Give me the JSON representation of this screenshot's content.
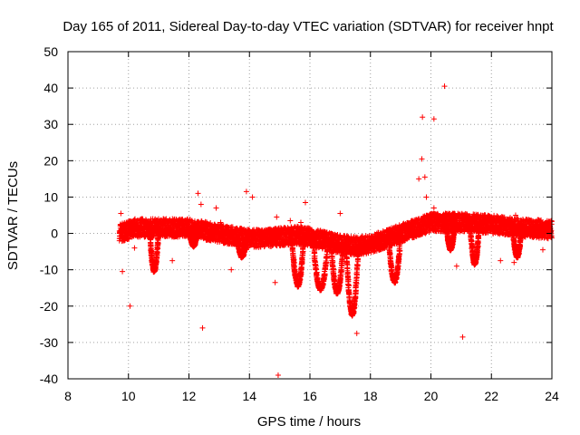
{
  "chart_data": {
    "type": "scatter",
    "title": "Day 165 of 2011, Sidereal Day-to-day VTEC variation (SDTVAR) for receiver hnpt",
    "xlabel": "GPS time / hours",
    "ylabel": "SDTVAR / TECUs",
    "xlim": [
      8,
      24
    ],
    "ylim": [
      -40,
      50
    ],
    "xticks": [
      8,
      10,
      12,
      14,
      16,
      18,
      20,
      22,
      24
    ],
    "yticks": [
      -40,
      -30,
      -20,
      -10,
      0,
      10,
      20,
      30,
      40,
      50
    ],
    "grid": true,
    "marker": "+",
    "colors": {
      "series": "#ff0000",
      "grid": "#a0a0a0",
      "axis": "#000000"
    },
    "series": [
      {
        "name": "SDTVAR",
        "dense_band": [
          [
            9.7,
            0
          ],
          [
            10.2,
            1.5
          ],
          [
            11,
            1.5
          ],
          [
            12,
            1.5
          ],
          [
            13,
            0
          ],
          [
            14,
            -1.5
          ],
          [
            15,
            -1
          ],
          [
            15.5,
            -0.5
          ],
          [
            16,
            -1
          ],
          [
            16.5,
            -2
          ],
          [
            17,
            -3
          ],
          [
            17.5,
            -3.5
          ],
          [
            18,
            -3
          ],
          [
            18.5,
            -1.5
          ],
          [
            19,
            0
          ],
          [
            19.5,
            1.5
          ],
          [
            20,
            3
          ],
          [
            20.5,
            3
          ],
          [
            21,
            3
          ],
          [
            22,
            2.5
          ],
          [
            23,
            1.5
          ],
          [
            24,
            1
          ]
        ],
        "dips": [
          {
            "x_start": 10.7,
            "x_end": 11.0,
            "min_y": -10
          },
          {
            "x_start": 12.0,
            "x_end": 12.3,
            "min_y": -3
          },
          {
            "x_start": 13.6,
            "x_end": 13.9,
            "min_y": -6
          },
          {
            "x_start": 15.4,
            "x_end": 15.8,
            "min_y": -14
          },
          {
            "x_start": 16.1,
            "x_end": 16.6,
            "min_y": -15
          },
          {
            "x_start": 16.7,
            "x_end": 17.1,
            "min_y": -16
          },
          {
            "x_start": 17.2,
            "x_end": 17.6,
            "min_y": -22
          },
          {
            "x_start": 18.6,
            "x_end": 19.0,
            "min_y": -13
          },
          {
            "x_start": 20.5,
            "x_end": 20.8,
            "min_y": -4
          },
          {
            "x_start": 21.3,
            "x_end": 21.6,
            "min_y": -8
          },
          {
            "x_start": 22.7,
            "x_end": 23.0,
            "min_y": -6
          }
        ],
        "outliers": [
          [
            9.75,
            5.5
          ],
          [
            9.8,
            -10.5
          ],
          [
            10.05,
            -20
          ],
          [
            10.2,
            -4
          ],
          [
            10.45,
            4
          ],
          [
            11.45,
            -7.5
          ],
          [
            12.3,
            11
          ],
          [
            12.4,
            8
          ],
          [
            12.45,
            -26
          ],
          [
            12.9,
            7
          ],
          [
            13.05,
            3
          ],
          [
            13.4,
            -10
          ],
          [
            13.9,
            11.5
          ],
          [
            14.1,
            10
          ],
          [
            14.85,
            -13.5
          ],
          [
            14.9,
            4.5
          ],
          [
            14.95,
            -39
          ],
          [
            15.35,
            3.5
          ],
          [
            15.7,
            3
          ],
          [
            15.85,
            8.5
          ],
          [
            16.05,
            1
          ],
          [
            17.0,
            5.5
          ],
          [
            17.55,
            -27.5
          ],
          [
            19.6,
            15
          ],
          [
            19.7,
            20.5
          ],
          [
            19.72,
            32
          ],
          [
            19.8,
            15.5
          ],
          [
            19.85,
            10
          ],
          [
            20.1,
            31.5
          ],
          [
            20.1,
            7
          ],
          [
            20.45,
            40.5
          ],
          [
            20.5,
            4
          ],
          [
            20.85,
            -9
          ],
          [
            21.05,
            -28.5
          ],
          [
            21.5,
            -7
          ],
          [
            22.3,
            -7.5
          ],
          [
            22.75,
            -8
          ],
          [
            22.8,
            5
          ],
          [
            23.4,
            0
          ],
          [
            23.7,
            -4.5
          ]
        ]
      }
    ]
  }
}
